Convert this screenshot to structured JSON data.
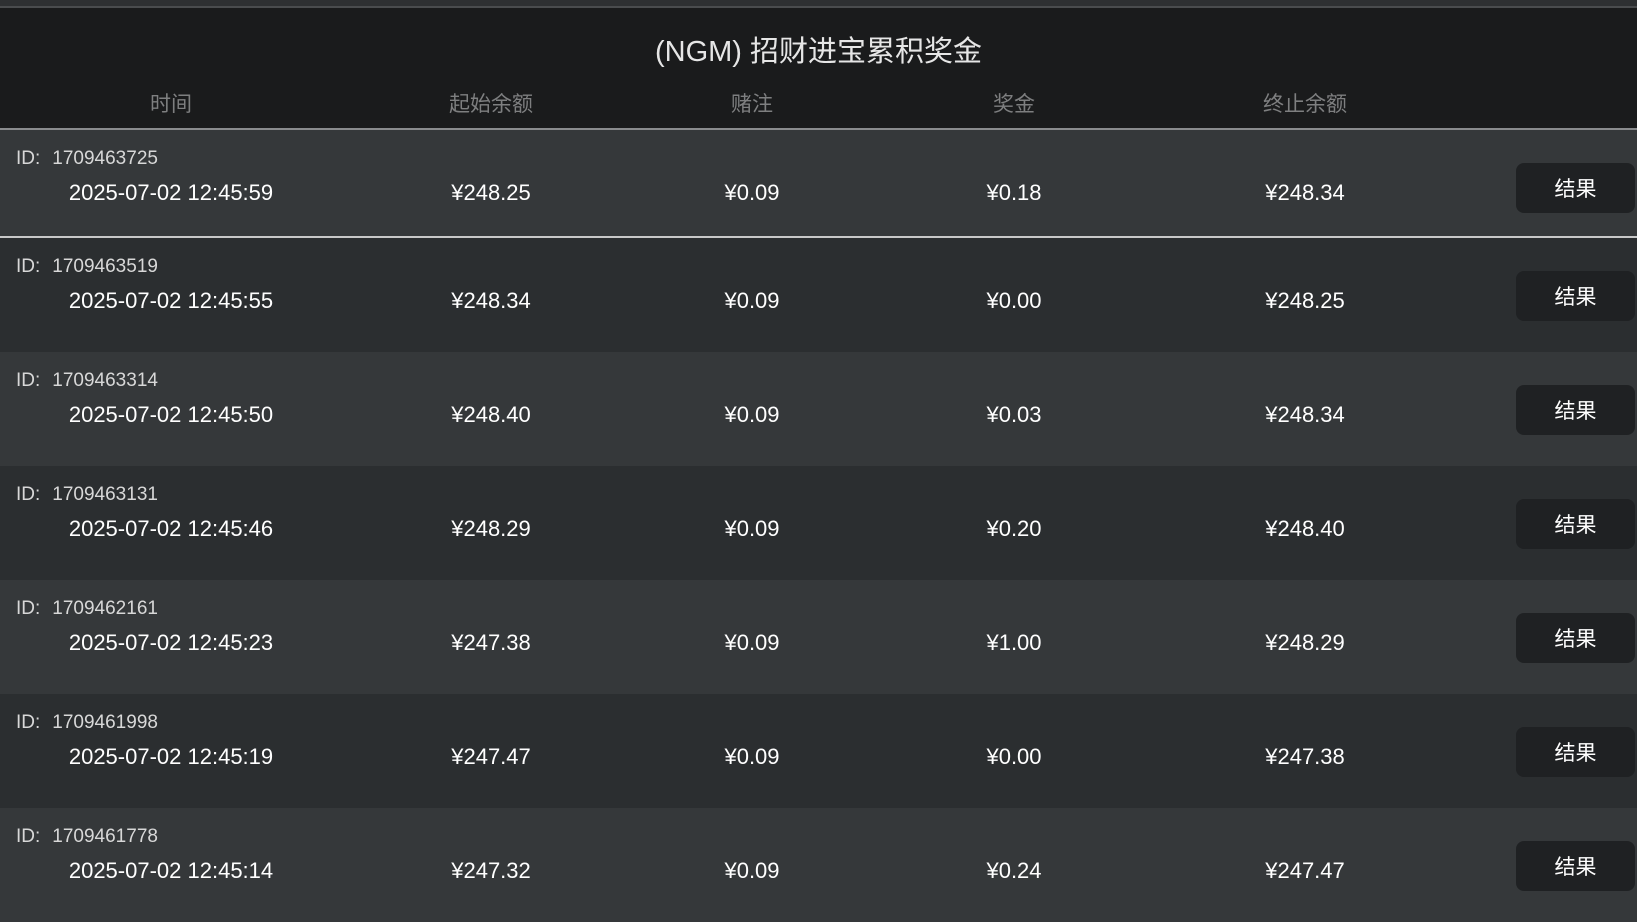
{
  "title": "(NGM) 招财进宝累积奖金",
  "columns": [
    "时间",
    "起始余额",
    "赌注",
    "奖金",
    "终止余额"
  ],
  "id_label": "ID:",
  "button_label": "结果",
  "colors": {
    "header_bg": "#1a1b1c",
    "row_odd": "#35383a",
    "row_even": "#2b2e30",
    "button_bg": "#1f2123"
  },
  "rows": [
    {
      "id": "1709463725",
      "time": "2025-07-02 12:45:59",
      "start": "¥248.25",
      "bet": "¥0.09",
      "prize": "¥0.18",
      "end": "¥248.34"
    },
    {
      "id": "1709463519",
      "time": "2025-07-02 12:45:55",
      "start": "¥248.34",
      "bet": "¥0.09",
      "prize": "¥0.00",
      "end": "¥248.25"
    },
    {
      "id": "1709463314",
      "time": "2025-07-02 12:45:50",
      "start": "¥248.40",
      "bet": "¥0.09",
      "prize": "¥0.03",
      "end": "¥248.34"
    },
    {
      "id": "1709463131",
      "time": "2025-07-02 12:45:46",
      "start": "¥248.29",
      "bet": "¥0.09",
      "prize": "¥0.20",
      "end": "¥248.40"
    },
    {
      "id": "1709462161",
      "time": "2025-07-02 12:45:23",
      "start": "¥247.38",
      "bet": "¥0.09",
      "prize": "¥1.00",
      "end": "¥248.29"
    },
    {
      "id": "1709461998",
      "time": "2025-07-02 12:45:19",
      "start": "¥247.47",
      "bet": "¥0.09",
      "prize": "¥0.00",
      "end": "¥247.38"
    },
    {
      "id": "1709461778",
      "time": "2025-07-02 12:45:14",
      "start": "¥247.32",
      "bet": "¥0.09",
      "prize": "¥0.24",
      "end": "¥247.47"
    }
  ]
}
